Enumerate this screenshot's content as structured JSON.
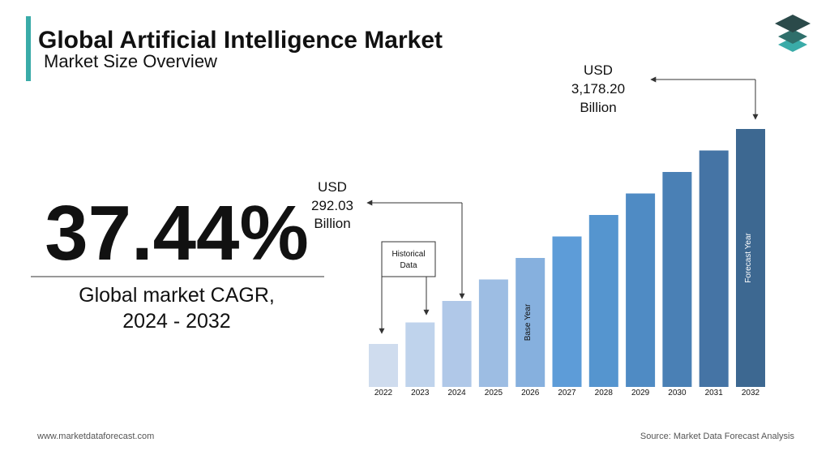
{
  "header": {
    "title": "Global Artificial Intelligence Market",
    "subtitle": "Market Size Overview"
  },
  "cagr": {
    "value": "37.44%",
    "label_lines": [
      "Global market CAGR,",
      "2024 - 2032"
    ]
  },
  "chart_data": {
    "type": "bar",
    "categories": [
      "2022",
      "2023",
      "2024",
      "2025",
      "2026",
      "2027",
      "2028",
      "2029",
      "2030",
      "2031",
      "2032"
    ],
    "colors": [
      "#cfdcee",
      "#bfd3ec",
      "#b0c8e8",
      "#9dbde3",
      "#86b0de",
      "#5d9cd8",
      "#5595cf",
      "#4f8bc4",
      "#4a80b5",
      "#4574a5",
      "#3d6891"
    ],
    "bar_labels": [
      null,
      null,
      null,
      null,
      "Base Year",
      null,
      null,
      null,
      null,
      null,
      "Forecast Year"
    ],
    "callouts": [
      {
        "lines": [
          "USD",
          "292.03",
          "Billion"
        ]
      },
      {
        "lines": [
          "USD",
          "3,178.20",
          "Billion"
        ]
      }
    ],
    "historical_note": [
      "Historical",
      "Data"
    ]
  },
  "footer": {
    "left": "www.marketdataforecast.com",
    "right": "Source: Market Data Forecast Analysis"
  }
}
